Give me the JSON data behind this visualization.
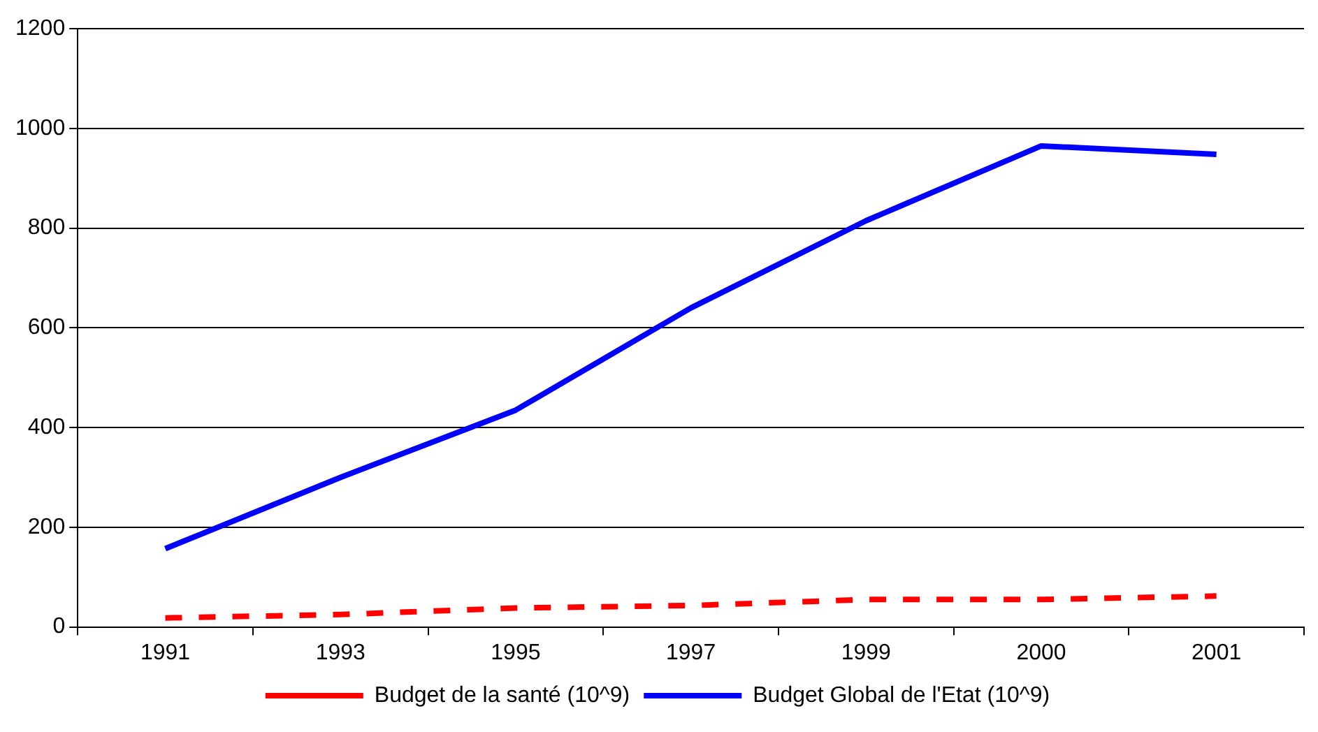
{
  "chart_data": {
    "type": "line",
    "categories": [
      "1991",
      "1993",
      "1995",
      "1997",
      "1999",
      "2000",
      "2001"
    ],
    "series": [
      {
        "name": "Budget de la santé (10^9)",
        "color": "#ff0000",
        "line_style": "dashed",
        "values": [
          18,
          25,
          38,
          43,
          55,
          55,
          62
        ]
      },
      {
        "name": "Budget Global de l'Etat (10^9)",
        "color": "#0000ff",
        "line_style": "solid",
        "values": [
          157,
          300,
          435,
          640,
          815,
          965,
          948
        ]
      }
    ],
    "ylim": [
      0,
      1200
    ],
    "yticks": [
      0,
      200,
      400,
      600,
      800,
      1000,
      1200
    ],
    "grid": "y",
    "legend": "bottom",
    "marker": "none"
  }
}
